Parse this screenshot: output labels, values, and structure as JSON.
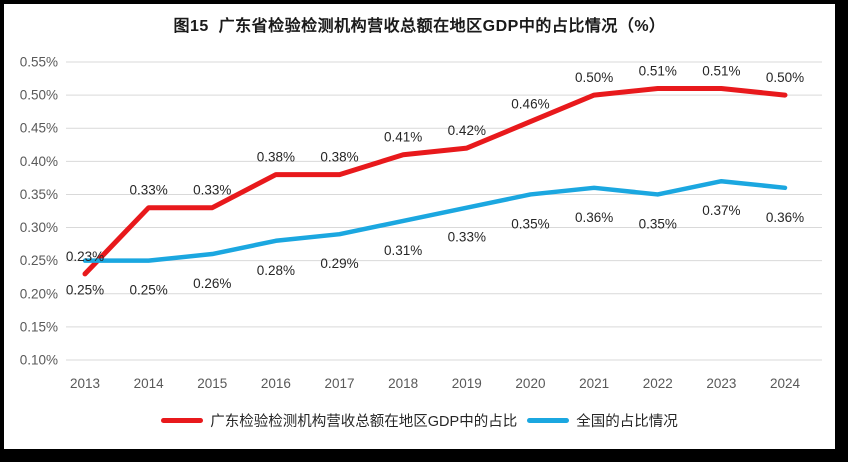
{
  "chart_data": {
    "type": "line",
    "title": "图15  广东省检验检测机构营收总额在地区GDP中的占比情况（%）",
    "categories": [
      "2013",
      "2014",
      "2015",
      "2016",
      "2017",
      "2018",
      "2019",
      "2020",
      "2021",
      "2022",
      "2023",
      "2024"
    ],
    "series": [
      {
        "name": "广东检验检测机构营收总额在地区GDP中的占比",
        "color": "#e8191c",
        "values": [
          0.23,
          0.33,
          0.33,
          0.38,
          0.38,
          0.41,
          0.42,
          0.46,
          0.5,
          0.51,
          0.51,
          0.5
        ],
        "labels": [
          "0.23%",
          "0.33%",
          "0.33%",
          "0.38%",
          "0.38%",
          "0.41%",
          "0.42%",
          "0.46%",
          "0.50%",
          "0.51%",
          "0.51%",
          "0.50%"
        ],
        "label_side": "above"
      },
      {
        "name": "全国的占比情况",
        "color": "#1ba7e0",
        "values": [
          0.25,
          0.25,
          0.26,
          0.28,
          0.29,
          0.31,
          0.33,
          0.35,
          0.36,
          0.35,
          0.37,
          0.36
        ],
        "labels": [
          "0.25%",
          "0.25%",
          "0.26%",
          "0.28%",
          "0.29%",
          "0.31%",
          "0.33%",
          "0.35%",
          "0.36%",
          "0.35%",
          "0.37%",
          "0.36%"
        ],
        "label_side": "below"
      }
    ],
    "ylim": [
      0.1,
      0.55
    ],
    "yticks": [
      "0.10%",
      "0.15%",
      "0.20%",
      "0.25%",
      "0.30%",
      "0.35%",
      "0.40%",
      "0.45%",
      "0.50%",
      "0.55%"
    ],
    "xlabel": "",
    "ylabel": "",
    "grid": "horizontal",
    "legend_position": "bottom",
    "colors": {
      "grid": "#d9d9d9",
      "axis_text": "#595959",
      "data_label_text": "#262626",
      "title_text": "#1a1a1a",
      "outer_frame": "#000000"
    }
  }
}
